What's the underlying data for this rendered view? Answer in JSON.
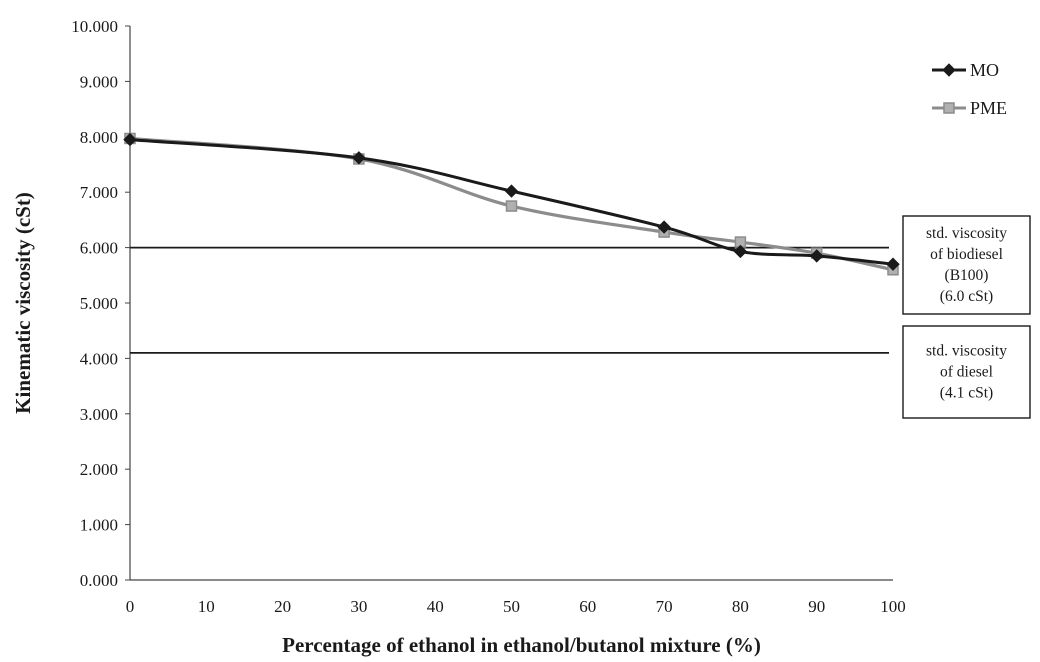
{
  "chart_data": {
    "type": "line",
    "title": "",
    "xlabel": "Percentage of ethanol in ethanol/butanol mixture (%)",
    "ylabel": "Kinematic viscosity (cSt)",
    "xlim": [
      0,
      100
    ],
    "ylim": [
      0,
      10
    ],
    "x_ticks": [
      "0",
      "10",
      "20",
      "30",
      "40",
      "50",
      "60",
      "70",
      "80",
      "90",
      "100"
    ],
    "y_ticks": [
      "0.000",
      "1.000",
      "2.000",
      "3.000",
      "4.000",
      "5.000",
      "6.000",
      "7.000",
      "8.000",
      "9.000",
      "10.000"
    ],
    "grid": false,
    "legend_position": "top-right",
    "series": [
      {
        "name": "MO",
        "color": "#1a1a1a",
        "marker": "diamond",
        "x": [
          0,
          30,
          50,
          70,
          80,
          90,
          100
        ],
        "values": [
          7.95,
          7.62,
          7.02,
          6.37,
          5.93,
          5.85,
          5.7
        ]
      },
      {
        "name": "PME",
        "color": "#8c8c8c",
        "marker": "square",
        "x": [
          0,
          30,
          50,
          70,
          80,
          90,
          100
        ],
        "values": [
          7.97,
          7.6,
          6.75,
          6.28,
          6.1,
          5.9,
          5.6
        ]
      }
    ],
    "reference_lines": [
      {
        "y": 6.0,
        "label_lines": [
          "std. viscosity",
          "of biodiesel",
          "(B100)",
          "(6.0 cSt)"
        ]
      },
      {
        "y": 4.1,
        "label_lines": [
          "std. viscosity",
          "of diesel",
          "(4.1 cSt)"
        ]
      }
    ]
  }
}
